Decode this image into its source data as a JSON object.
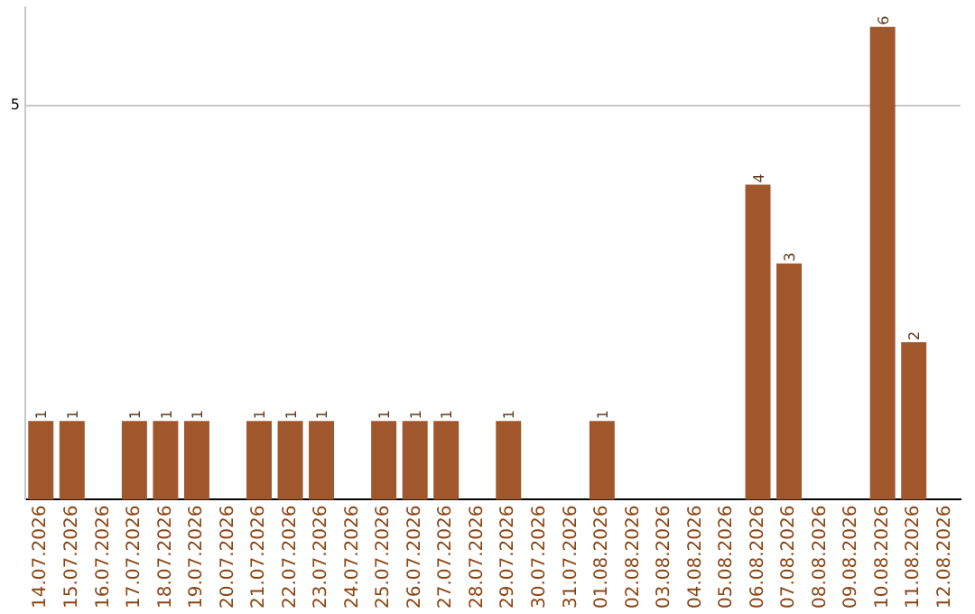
{
  "chart_data": {
    "type": "bar",
    "categories": [
      "14.07.2026",
      "15.07.2026",
      "16.07.2026",
      "17.07.2026",
      "18.07.2026",
      "19.07.2026",
      "20.07.2026",
      "21.07.2026",
      "22.07.2026",
      "23.07.2026",
      "24.07.2026",
      "25.07.2026",
      "26.07.2026",
      "27.07.2026",
      "28.07.2026",
      "29.07.2026",
      "30.07.2026",
      "31.07.2026",
      "01.08.2026",
      "02.08.2026",
      "03.08.2026",
      "04.08.2026",
      "05.08.2026",
      "06.08.2026",
      "07.08.2026",
      "08.08.2026",
      "09.08.2026",
      "10.08.2026",
      "11.08.2026",
      "12.08.2026"
    ],
    "values": [
      1,
      1,
      0,
      1,
      1,
      1,
      0,
      1,
      1,
      1,
      0,
      1,
      1,
      1,
      0,
      1,
      0,
      0,
      1,
      0,
      0,
      0,
      0,
      4,
      3,
      0,
      0,
      6,
      2,
      0
    ],
    "value_labels": [
      "1",
      "1",
      null,
      "1",
      "1",
      "1",
      null,
      "1",
      "1",
      "1",
      null,
      "1",
      "1",
      "1",
      null,
      "1",
      null,
      null,
      "1",
      null,
      null,
      null,
      null,
      "4",
      "3",
      null,
      null,
      "6",
      "2",
      null
    ],
    "color": "#a0572b",
    "ylim": [
      0,
      6.25
    ],
    "ref_lines": [
      {
        "axis": "y",
        "value": 5,
        "label": "5",
        "color": "#c8c8c8"
      }
    ],
    "legend": false
  }
}
